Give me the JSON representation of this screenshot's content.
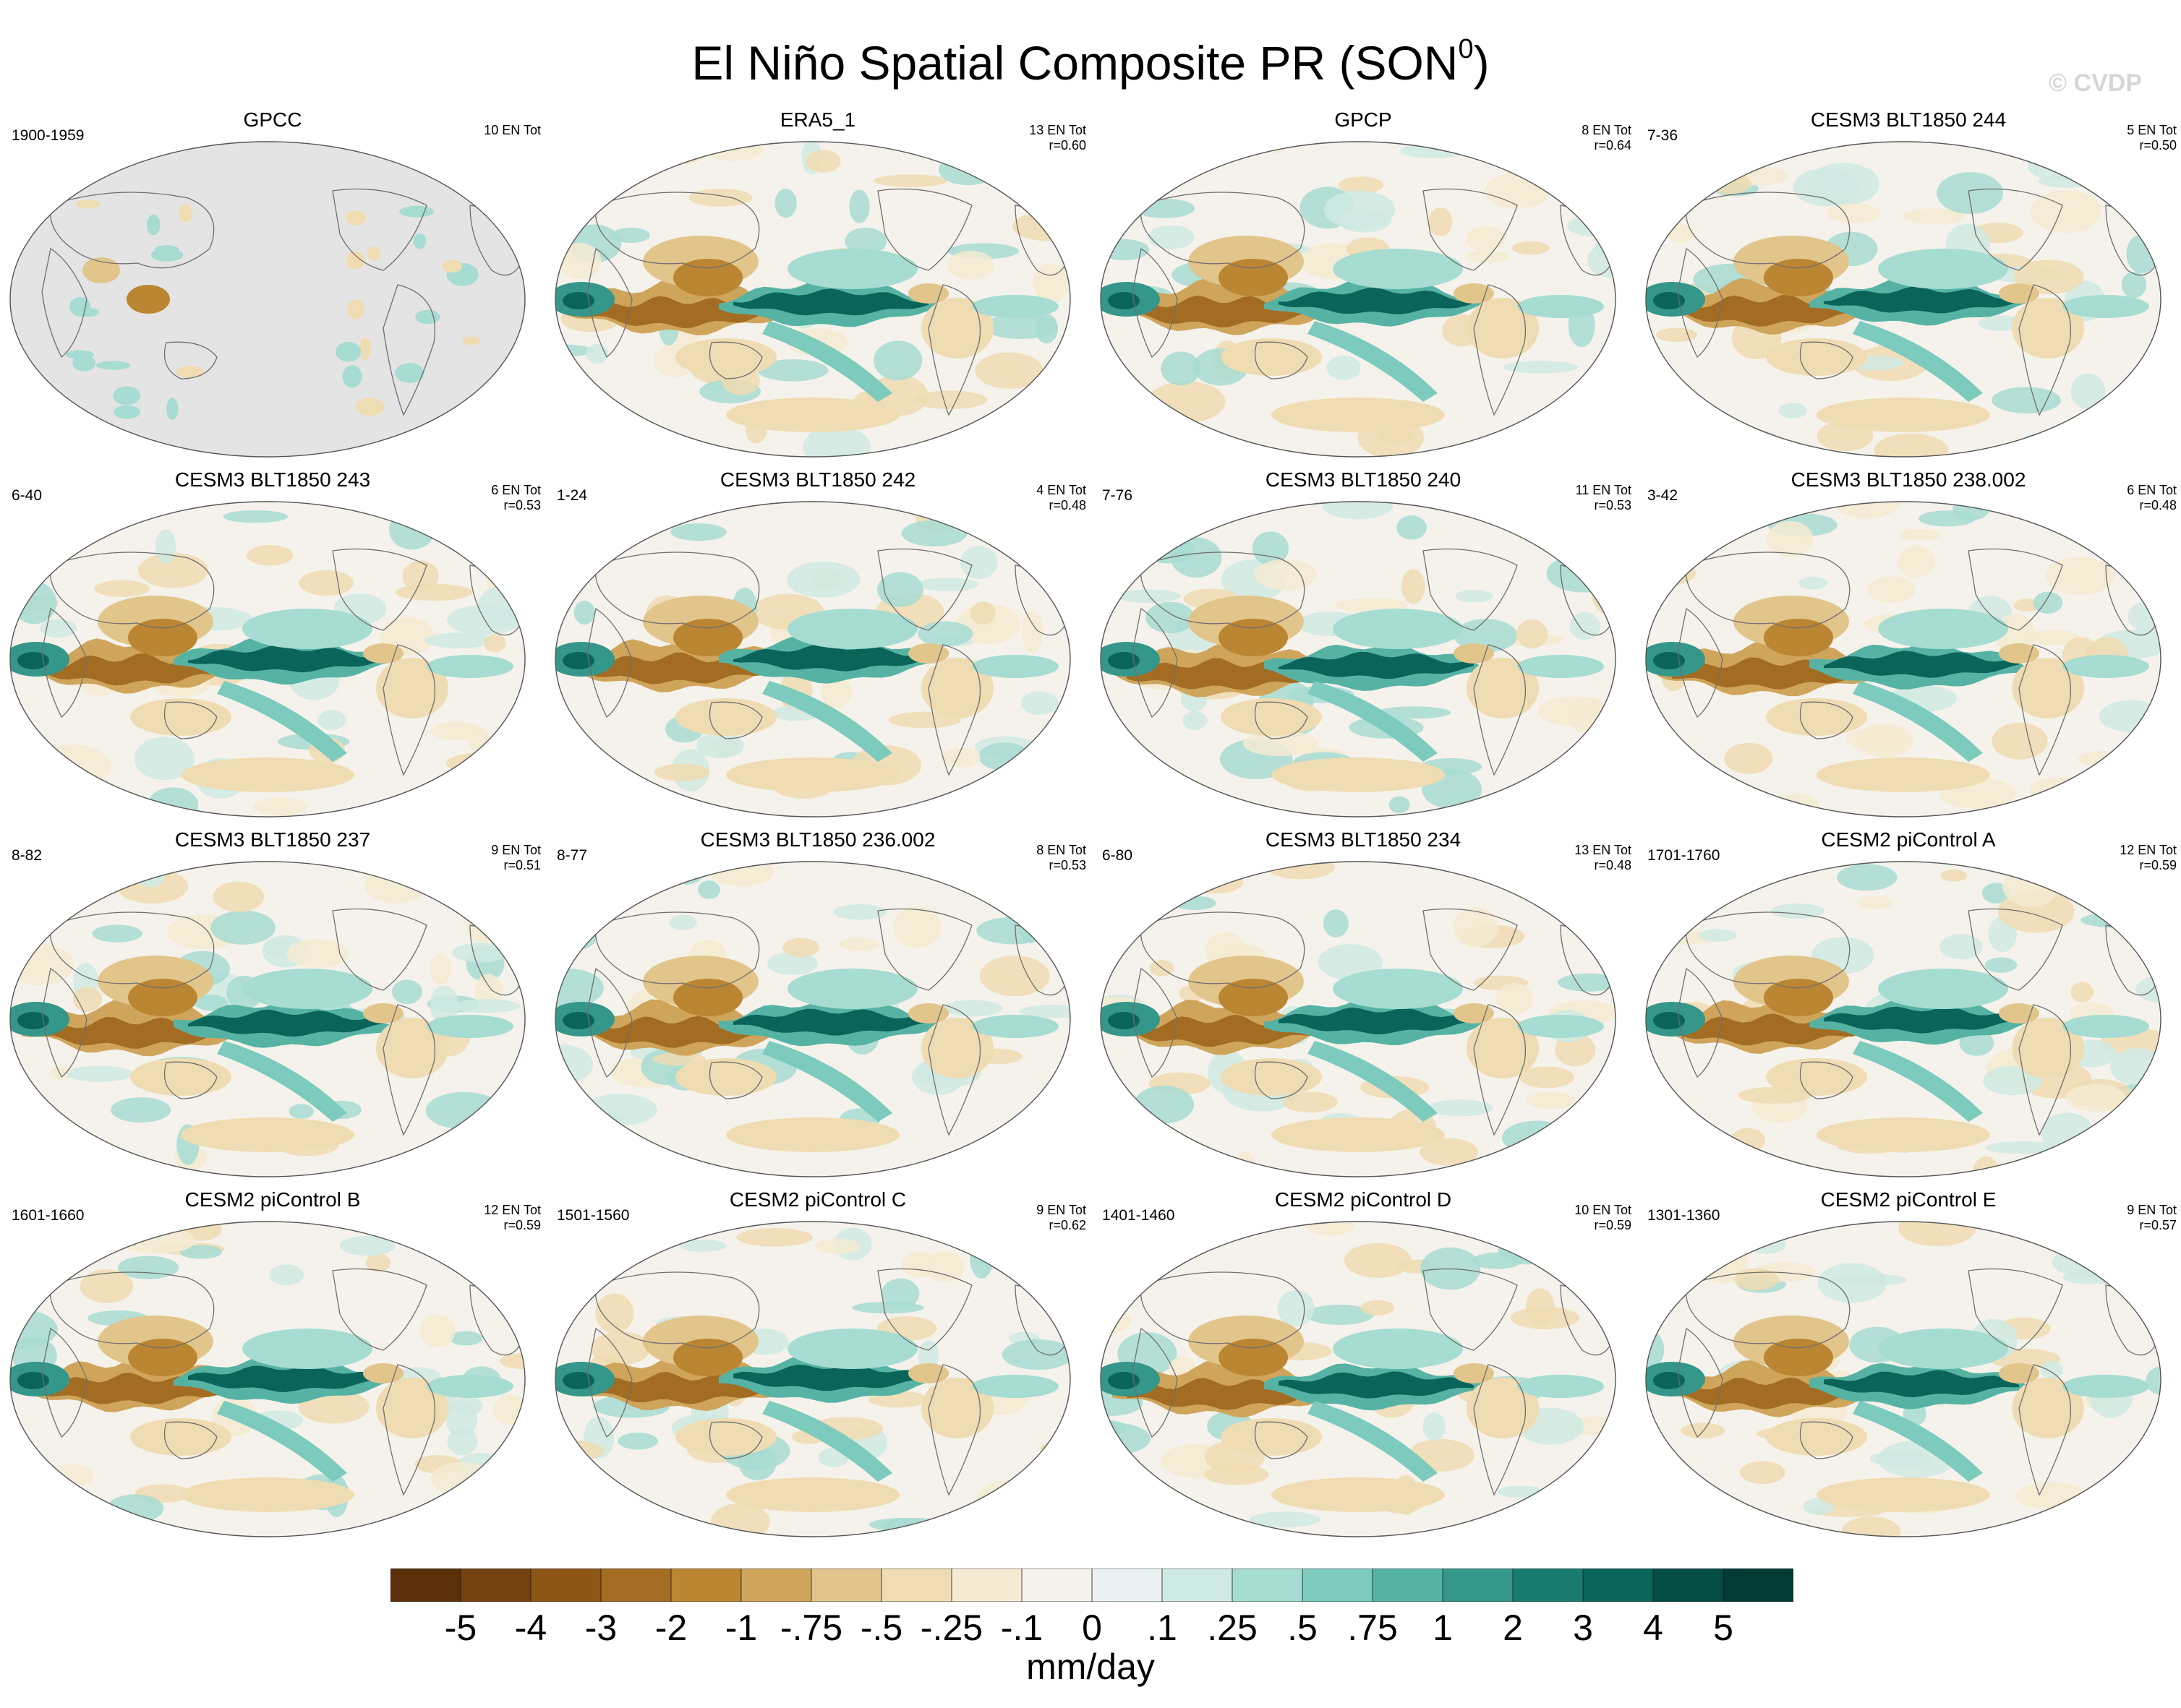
{
  "title_main": "El Niño Spatial Composite PR (SON",
  "title_sup": "0",
  "title_close": ")",
  "watermark": "© CVDP",
  "chart_data": {
    "type": "heatmap",
    "title": "El Niño Spatial Composite PR (SON0)",
    "variable": "PR",
    "season": "SON0",
    "units": "mm/day",
    "projection": "global map",
    "colorbar": {
      "levels": [
        "-5",
        "-4",
        "-3",
        "-2",
        "-1",
        "-.75",
        "-.5",
        "-.25",
        "-.1",
        "0",
        ".1",
        ".25",
        ".5",
        ".75",
        "1",
        "2",
        "3",
        "4",
        "5"
      ],
      "colors": [
        "#5a2f0a",
        "#74420f",
        "#8c5617",
        "#a36c23",
        "#bb8632",
        "#cfa55c",
        "#e2c58b",
        "#efdcb2",
        "#f5ebd2",
        "#f5f2ec",
        "#e9f2f0",
        "#cfeae3",
        "#a7dcd2",
        "#7ccbbd",
        "#56b3a4",
        "#35968a",
        "#1a7c70",
        "#0b645a",
        "#034d44",
        "#013b33"
      ]
    },
    "panels": [
      {
        "name": "GPCC",
        "period": "1900-1959",
        "events": "10 EN Tot",
        "r": ""
      },
      {
        "name": "ERA5_1",
        "period": "",
        "events": "13 EN Tot",
        "r": "r=0.60"
      },
      {
        "name": "GPCP",
        "period": "",
        "events": "8 EN Tot",
        "r": "r=0.64"
      },
      {
        "name": "CESM3 BLT1850 244",
        "period": "7-36",
        "events": "5 EN Tot",
        "r": "r=0.50"
      },
      {
        "name": "CESM3 BLT1850 243",
        "period": "6-40",
        "events": "6 EN Tot",
        "r": "r=0.53"
      },
      {
        "name": "CESM3 BLT1850 242",
        "period": "1-24",
        "events": "4 EN Tot",
        "r": "r=0.48"
      },
      {
        "name": "CESM3 BLT1850 240",
        "period": "7-76",
        "events": "11 EN Tot",
        "r": "r=0.53"
      },
      {
        "name": "CESM3 BLT1850 238.002",
        "period": "3-42",
        "events": "6 EN Tot",
        "r": "r=0.48"
      },
      {
        "name": "CESM3 BLT1850 237",
        "period": "8-82",
        "events": "9 EN Tot",
        "r": "r=0.51"
      },
      {
        "name": "CESM3 BLT1850 236.002",
        "period": "8-77",
        "events": "8 EN Tot",
        "r": "r=0.53"
      },
      {
        "name": "CESM3 BLT1850 234",
        "period": "6-80",
        "events": "13 EN Tot",
        "r": "r=0.48"
      },
      {
        "name": "CESM2 piControl A",
        "period": "1701-1760",
        "events": "12 EN Tot",
        "r": "r=0.59"
      },
      {
        "name": "CESM2 piControl B",
        "period": "1601-1660",
        "events": "12 EN Tot",
        "r": "r=0.59"
      },
      {
        "name": "CESM2 piControl C",
        "period": "1501-1560",
        "events": "9 EN Tot",
        "r": "r=0.62"
      },
      {
        "name": "CESM2 piControl D",
        "period": "1401-1460",
        "events": "10 EN Tot",
        "r": "r=0.59"
      },
      {
        "name": "CESM2 piControl E",
        "period": "1301-1360",
        "events": "9 EN Tot",
        "r": "r=0.57"
      }
    ]
  }
}
